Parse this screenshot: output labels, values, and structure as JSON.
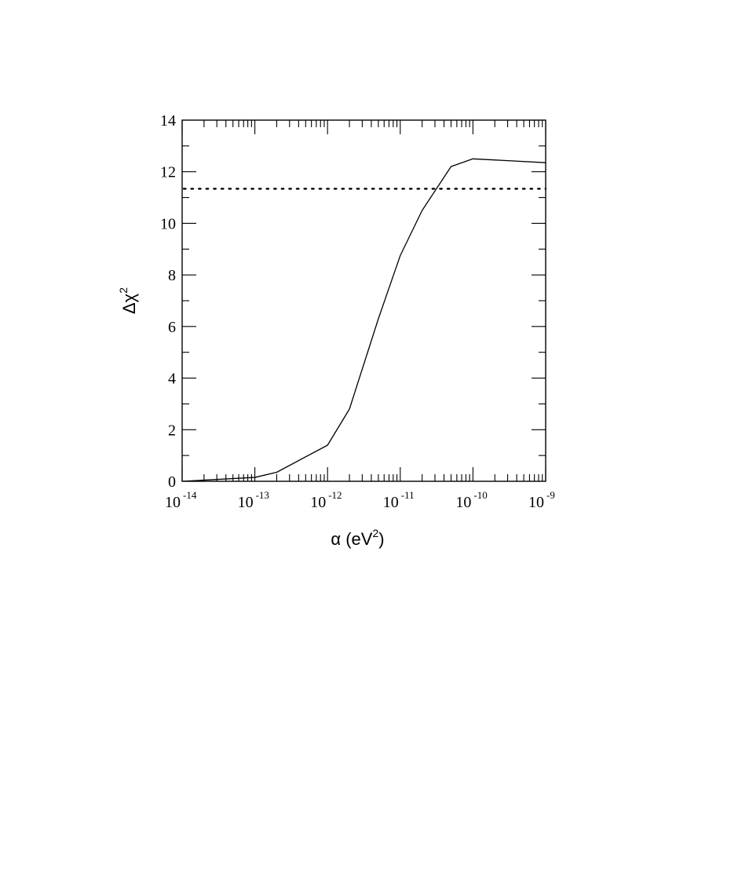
{
  "chart_data": {
    "type": "line",
    "title": "",
    "xlabel": "α (eV²)",
    "xlabel_parts": {
      "base": "α (eV",
      "sup": "2",
      "tail": ")"
    },
    "ylabel": "Δχ²",
    "ylabel_parts": {
      "base": "Δχ",
      "sup": "2"
    },
    "x_scale": "log",
    "xlim": [
      1e-14,
      1e-09
    ],
    "ylim": [
      0,
      14
    ],
    "grid": false,
    "x_ticks": [
      {
        "value": 1e-14,
        "base": "10",
        "exp": "-14"
      },
      {
        "value": 1e-13,
        "base": "10",
        "exp": "-13"
      },
      {
        "value": 1e-12,
        "base": "10",
        "exp": "-12"
      },
      {
        "value": 1e-11,
        "base": "10",
        "exp": "-11"
      },
      {
        "value": 1e-10,
        "base": "10",
        "exp": "-10"
      },
      {
        "value": 1e-09,
        "base": "10",
        "exp": "-9"
      }
    ],
    "y_ticks": [
      0,
      2,
      4,
      6,
      8,
      10,
      12,
      14
    ],
    "series": [
      {
        "style": "solid",
        "x": [
          1e-14,
          1e-13,
          2e-13,
          1e-12,
          2e-12,
          5e-12,
          1e-11,
          2e-11,
          5e-11,
          1e-10,
          1e-09
        ],
        "y": [
          0.0,
          0.15,
          0.35,
          1.4,
          2.8,
          6.3,
          8.75,
          10.5,
          12.2,
          12.5,
          12.35
        ]
      }
    ],
    "reference_lines": [
      {
        "style": "dotted",
        "y": 11.34
      }
    ]
  }
}
